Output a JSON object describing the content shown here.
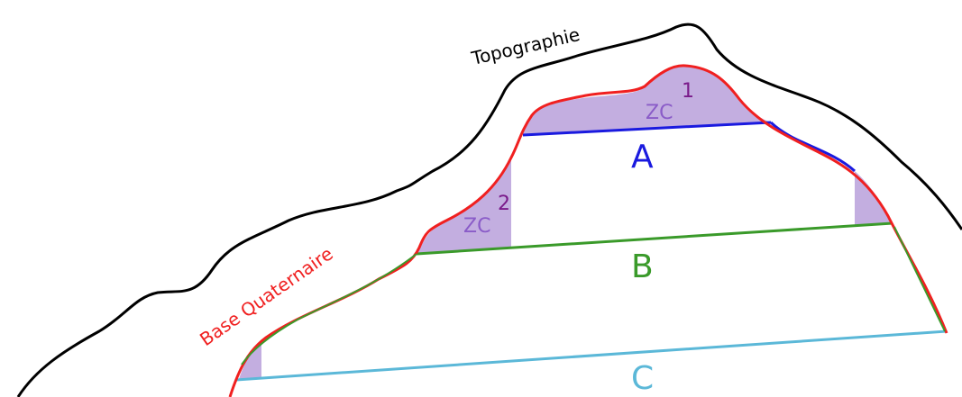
{
  "labels": {
    "topography": "Topographie",
    "base": "Base Quaternaire"
  },
  "zones": [
    {
      "label": "ZC",
      "index": "1"
    },
    {
      "label": "ZC",
      "index": "2"
    }
  ],
  "levels": [
    "A",
    "B",
    "C"
  ]
}
